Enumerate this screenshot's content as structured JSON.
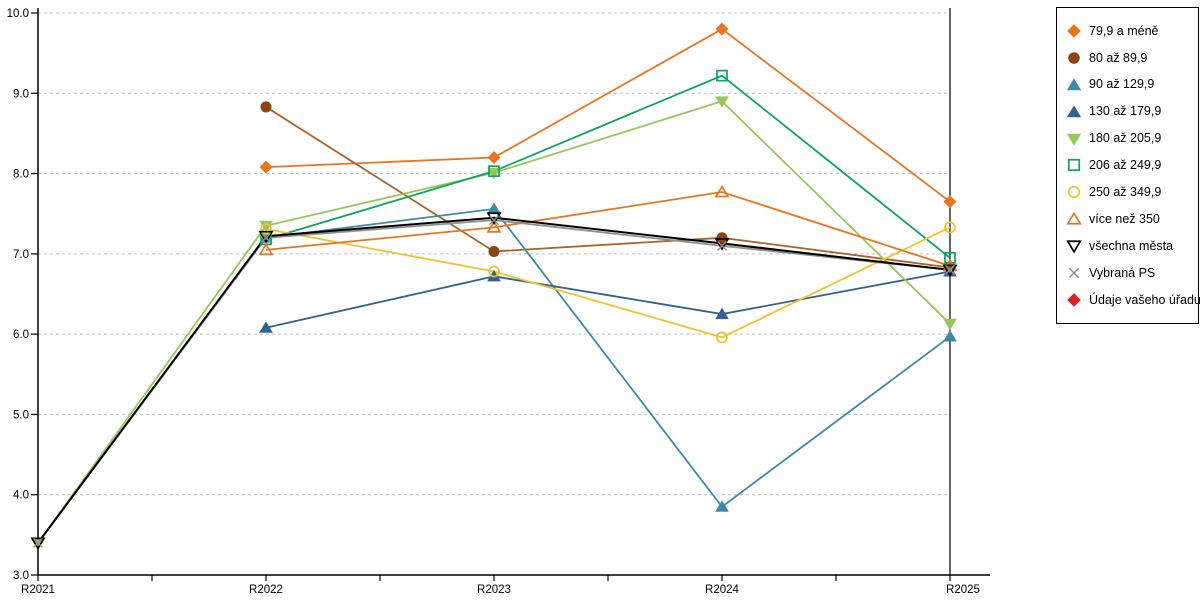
{
  "chart_data": {
    "type": "line",
    "title": "",
    "xlabel": "",
    "ylabel": "",
    "categories": [
      "R2021",
      "R2022",
      "R2023",
      "R2024",
      "R2025"
    ],
    "ylim": [
      3.0,
      10.0
    ],
    "ytick_step": 1.0,
    "ytick_labels": [
      "3.0",
      "4.0",
      "5.0",
      "6.0",
      "7.0",
      "8.0",
      "9.0",
      "10.0"
    ],
    "grid": "horizontal-dashed",
    "grid_color": "#bfbfbf",
    "axis_color": "#000000",
    "legend_position": "right",
    "series": [
      {
        "name": "79,9 a méně",
        "color": "#e8761e",
        "marker": "diamond",
        "fill": "solid",
        "values": [
          null,
          8.08,
          8.2,
          9.8,
          7.65
        ]
      },
      {
        "name": "80 až 89,9",
        "color": "#8b4513",
        "line_color": "#a9632b",
        "marker": "circle",
        "fill": "solid",
        "values": [
          null,
          8.83,
          7.03,
          7.2,
          6.83
        ]
      },
      {
        "name": "90 až 129,9",
        "color": "#3e89a6",
        "marker": "triangle-up",
        "fill": "solid",
        "values": [
          null,
          7.2,
          7.56,
          3.85,
          5.97
        ]
      },
      {
        "name": "130 až 179,9",
        "color": "#34628f",
        "marker": "triangle-up",
        "fill": "solid",
        "values": [
          null,
          6.08,
          6.72,
          6.25,
          6.78
        ]
      },
      {
        "name": "180 až 205,9",
        "color": "#97c75b",
        "marker": "triangle-down",
        "fill": "solid",
        "values": [
          3.4,
          7.35,
          8.01,
          8.9,
          6.13
        ]
      },
      {
        "name": "206 až 249,9",
        "color": "#0ba55d",
        "marker": "square",
        "fill": "open",
        "values": [
          null,
          7.18,
          8.03,
          9.22,
          6.95
        ]
      },
      {
        "name": "250 až 349,9",
        "color": "#f0c32e",
        "marker": "circle",
        "fill": "open",
        "values": [
          null,
          7.31,
          6.78,
          5.96,
          7.33
        ]
      },
      {
        "name": "více než 350",
        "color": "#e8761e",
        "marker": "triangle-up",
        "fill": "open",
        "values": [
          null,
          7.05,
          7.33,
          7.77,
          6.85
        ]
      },
      {
        "name": "všechna města",
        "color": "#000000",
        "marker": "triangle-down",
        "fill": "open",
        "values": [
          3.4,
          7.22,
          7.45,
          7.13,
          6.8
        ]
      },
      {
        "name": "Vybraná PS",
        "color": "#8f8f8f",
        "marker": "x",
        "fill": "open",
        "values": [
          3.4,
          7.2,
          7.42,
          7.1,
          6.8
        ]
      },
      {
        "name": "Údaje vašeho úřadu",
        "color": "#dc1f26",
        "marker": "diamond",
        "fill": "solid",
        "values": [
          null,
          null,
          null,
          null,
          null
        ]
      }
    ]
  }
}
